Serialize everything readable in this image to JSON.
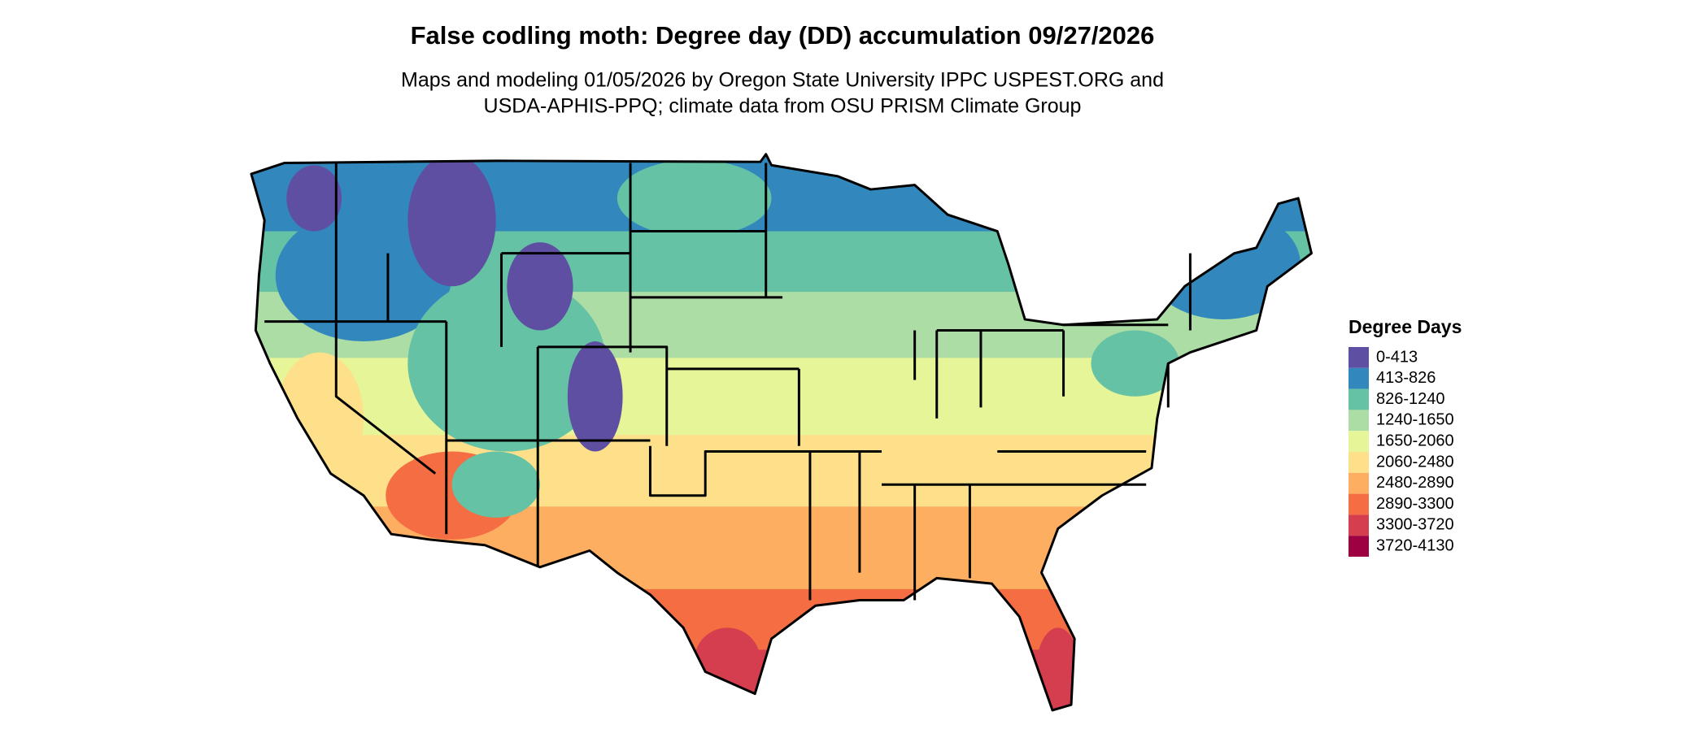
{
  "header": {
    "title": "False codling moth: Degree day (DD) accumulation 09/27/2026",
    "subtitle": [
      "Maps and modeling 01/05/2026 by Oregon State University IPPC USPEST.ORG and",
      "USDA-APHIS-PPQ; climate data from OSU PRISM Climate Group"
    ]
  },
  "legend": {
    "title": "Degree Days",
    "items": [
      {
        "label": "0-413",
        "color": "#5e4fa2"
      },
      {
        "label": "413-826",
        "color": "#3288bd"
      },
      {
        "label": "826-1240",
        "color": "#66c2a5"
      },
      {
        "label": "1240-1650",
        "color": "#abdda4"
      },
      {
        "label": "1650-2060",
        "color": "#e6f598"
      },
      {
        "label": "2060-2480",
        "color": "#fee08b"
      },
      {
        "label": "2480-2890",
        "color": "#fdae61"
      },
      {
        "label": "2890-3300",
        "color": "#f46d43"
      },
      {
        "label": "3300-3720",
        "color": "#d53e4f"
      },
      {
        "label": "3720-4130",
        "color": "#9e0142"
      }
    ]
  }
}
